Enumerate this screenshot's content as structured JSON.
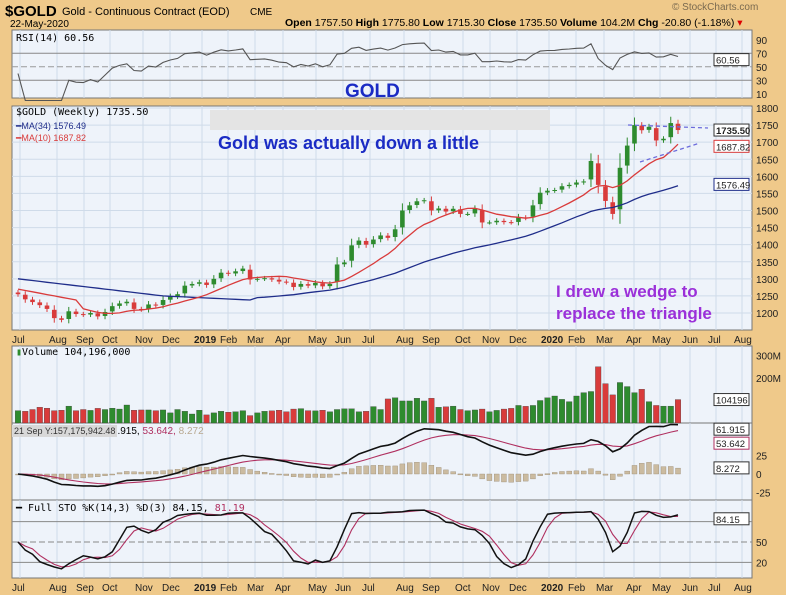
{
  "header": {
    "symbol": "$GOLD",
    "name": "Gold - Continuous Contract (EOD)",
    "exchange": "CME",
    "date": "22-May-2020",
    "watermark": "© StockCharts.com",
    "quote": {
      "open_label": "Open",
      "open": "1757.50",
      "high_label": "High",
      "high": "1775.80",
      "low_label": "Low",
      "low": "1715.30",
      "close_label": "Close",
      "close": "1735.50",
      "volume_label": "Volume",
      "volume": "104.2M",
      "chg_label": "Chg",
      "chg": "-20.80 (-1.18%)"
    }
  },
  "rsi": {
    "label": "RSI(14) 60.56",
    "value_tag": "60.56",
    "ticks": [
      "90",
      "70",
      "50",
      "30",
      "10"
    ],
    "levels": [
      70,
      50,
      30
    ]
  },
  "price_panel": {
    "label": "$GOLD (Weekly) 1735.50",
    "ma34_label": "MA(34) 1576.49",
    "ma10_label": "MA(10) 1687.82",
    "tags": {
      "close": "1735.50",
      "ma10": "1687.82",
      "ma34": "1576.49"
    },
    "ticks": [
      "1800",
      "1750",
      "1700",
      "1650",
      "1600",
      "1550",
      "1500",
      "1450",
      "1400",
      "1350",
      "1300",
      "1250",
      "1200"
    ],
    "colors": {
      "up": "#2e8b2e",
      "down": "#d93b3b",
      "ma34": "#1f2d8a",
      "ma10": "#d93b3b"
    }
  },
  "annotations": {
    "gold_title": "GOLD",
    "note1": "Gold was actually down a little",
    "note2_line1": "I drew a wedge to",
    "note2_line2": "replace the triangle",
    "note_blue": "#1a2bc4",
    "note_purple": "#9b30d9"
  },
  "x_axis": [
    "Jul",
    "Aug",
    "Sep",
    "Oct",
    "Nov",
    "Dec",
    "2019",
    "Feb",
    "Mar",
    "Apr",
    "May",
    "Jun",
    "Jul",
    "Aug",
    "Sep",
    "Oct",
    "Nov",
    "Dec",
    "2020",
    "Feb",
    "Mar",
    "Apr",
    "May",
    "Jun",
    "Jul",
    "Aug"
  ],
  "volume": {
    "label": "Volume 104,196,000",
    "value_tag": "104196",
    "ticks": [
      "300M",
      "200M"
    ]
  },
  "macd": {
    "tooltip": "21 Sep Y:157,175,942.48",
    "label_a": ".915,",
    "label_b": "53.642,",
    "label_c": "8.272",
    "tags": [
      "61.915",
      "53.642",
      "8.272"
    ],
    "ticks": [
      "25",
      "0",
      "-25"
    ]
  },
  "sto": {
    "label": "Full STO %K(14,3) %D(3) 84.15,",
    "label_d": "81.19",
    "value_tag": "84.15",
    "ticks": [
      "50",
      "20"
    ]
  },
  "chart_data": {
    "type": "candlestick",
    "title": "$GOLD Gold - Continuous Contract (EOD) CME",
    "period": "weekly",
    "x_start": "Jul 2018",
    "x_end": "May 2020",
    "ylim": [
      1180,
      1800
    ],
    "closes": [
      1255,
      1240,
      1232,
      1223,
      1212,
      1185,
      1180,
      1205,
      1197,
      1195,
      1200,
      1190,
      1203,
      1220,
      1228,
      1233,
      1212,
      1210,
      1225,
      1222,
      1238,
      1248,
      1255,
      1280,
      1285,
      1290,
      1282,
      1300,
      1318,
      1315,
      1322,
      1330,
      1298,
      1300,
      1302,
      1298,
      1292,
      1290,
      1276,
      1285,
      1280,
      1288,
      1278,
      1285,
      1342,
      1348,
      1398,
      1412,
      1400,
      1415,
      1427,
      1420,
      1445,
      1500,
      1515,
      1527,
      1530,
      1500,
      1506,
      1497,
      1505,
      1490,
      1490,
      1505,
      1465,
      1465,
      1470,
      1466,
      1465,
      1480,
      1478,
      1515,
      1552,
      1558,
      1560,
      1571,
      1575,
      1582,
      1585,
      1645,
      1575,
      1528,
      1490,
      1625,
      1690,
      1750,
      1735,
      1745,
      1705,
      1710,
      1756,
      1735.5
    ],
    "volume_millions": [
      55,
      52,
      60,
      70,
      66,
      55,
      57,
      75,
      55,
      60,
      56,
      65,
      60,
      66,
      62,
      80,
      57,
      58,
      58,
      55,
      58,
      45,
      60,
      52,
      40,
      57,
      36,
      45,
      52,
      48,
      50,
      55,
      33,
      45,
      52,
      54,
      57,
      50,
      62,
      64,
      55,
      54,
      57,
      50,
      60,
      63,
      63,
      50,
      52,
      73,
      60,
      107,
      112,
      98,
      98,
      110,
      98,
      110,
      70,
      72,
      75,
      60,
      55,
      58,
      62,
      50,
      56,
      62,
      65,
      78,
      74,
      78,
      100,
      112,
      120,
      105,
      95,
      120,
      135,
      140,
      250,
      175,
      125,
      180,
      162,
      135,
      150,
      95,
      78,
      75,
      75,
      104.2
    ],
    "grid": true
  }
}
